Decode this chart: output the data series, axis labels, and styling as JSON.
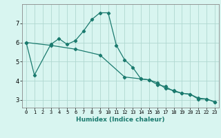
{
  "xlabel": "Humidex (Indice chaleur)",
  "ylabel": "",
  "background_color": "#d8f5f0",
  "grid_color": "#b0d8d0",
  "line_color": "#1a7a6e",
  "xlim": [
    -0.5,
    23.5
  ],
  "ylim": [
    2.6,
    8.0
  ],
  "xticks": [
    0,
    1,
    2,
    3,
    4,
    5,
    6,
    7,
    8,
    9,
    10,
    11,
    12,
    13,
    14,
    15,
    16,
    17,
    18,
    19,
    20,
    21,
    22,
    23
  ],
  "yticks": [
    3,
    4,
    5,
    6,
    7
  ],
  "series1_x": [
    0,
    1,
    3,
    4,
    5,
    6,
    7,
    8,
    9,
    10,
    11,
    12,
    13,
    14,
    15,
    16,
    17,
    18,
    19,
    20,
    21,
    22,
    23
  ],
  "series1_y": [
    6.0,
    4.3,
    5.9,
    6.2,
    5.9,
    6.1,
    6.6,
    7.2,
    7.55,
    7.55,
    5.85,
    5.1,
    4.7,
    4.1,
    4.05,
    3.8,
    3.7,
    3.45,
    3.35,
    3.3,
    3.05,
    3.05,
    2.9
  ],
  "series2_x": [
    0,
    3,
    6,
    9,
    12,
    14,
    15,
    16,
    17,
    18,
    19,
    20,
    21,
    22,
    23
  ],
  "series2_y": [
    6.0,
    5.85,
    5.65,
    5.35,
    4.2,
    4.1,
    4.05,
    3.9,
    3.6,
    3.5,
    3.35,
    3.3,
    3.1,
    3.05,
    2.9
  ],
  "marker": "D",
  "markersize": 2.2
}
